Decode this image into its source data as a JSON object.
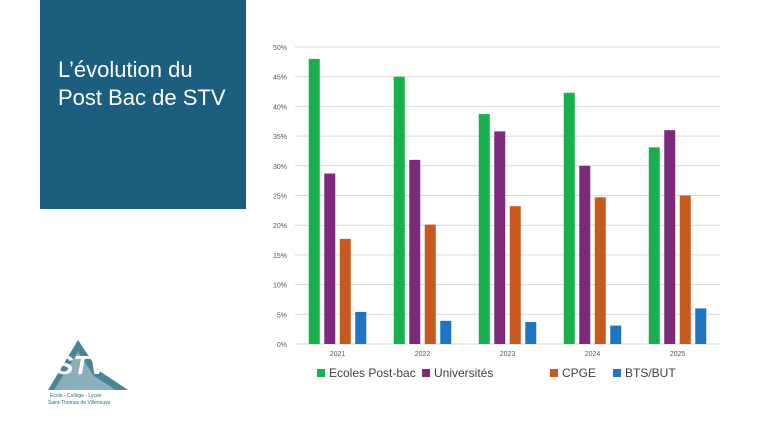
{
  "slide": {
    "title_line1": "L’évolution du",
    "title_line2": "Post Bac de STV",
    "panel_color": "#1b5e7f"
  },
  "logo": {
    "text_tagline": "Ecole - Collège - Lycée",
    "text_name": "Saint-Thomas de Villeneuve",
    "text_letters": "STV",
    "color": "#2a6f84"
  },
  "chart_data": {
    "type": "bar",
    "categories": [
      "2021",
      "2022",
      "2023",
      "2024",
      "2025"
    ],
    "series": [
      {
        "name": "Ecoles Post-bac",
        "color": "#16b04d",
        "values": [
          48.0,
          45.0,
          38.7,
          42.3,
          33.1
        ]
      },
      {
        "name": "Universités",
        "color": "#7b2a7e",
        "values": [
          28.7,
          31.0,
          35.8,
          30.0,
          36.0
        ]
      },
      {
        "name": "CPGE",
        "color": "#c65a1e",
        "values": [
          17.7,
          20.1,
          23.2,
          24.7,
          25.0
        ]
      },
      {
        "name": "BTS/BUT",
        "color": "#1f74c4",
        "values": [
          5.4,
          3.9,
          3.7,
          3.1,
          6.0
        ]
      }
    ],
    "yticks": [
      "0%",
      "5%",
      "10%",
      "15%",
      "20%",
      "25%",
      "30%",
      "35%",
      "40%",
      "45%",
      "50%"
    ],
    "ylim": [
      0,
      50
    ],
    "grid": true,
    "legend": "bottom"
  }
}
